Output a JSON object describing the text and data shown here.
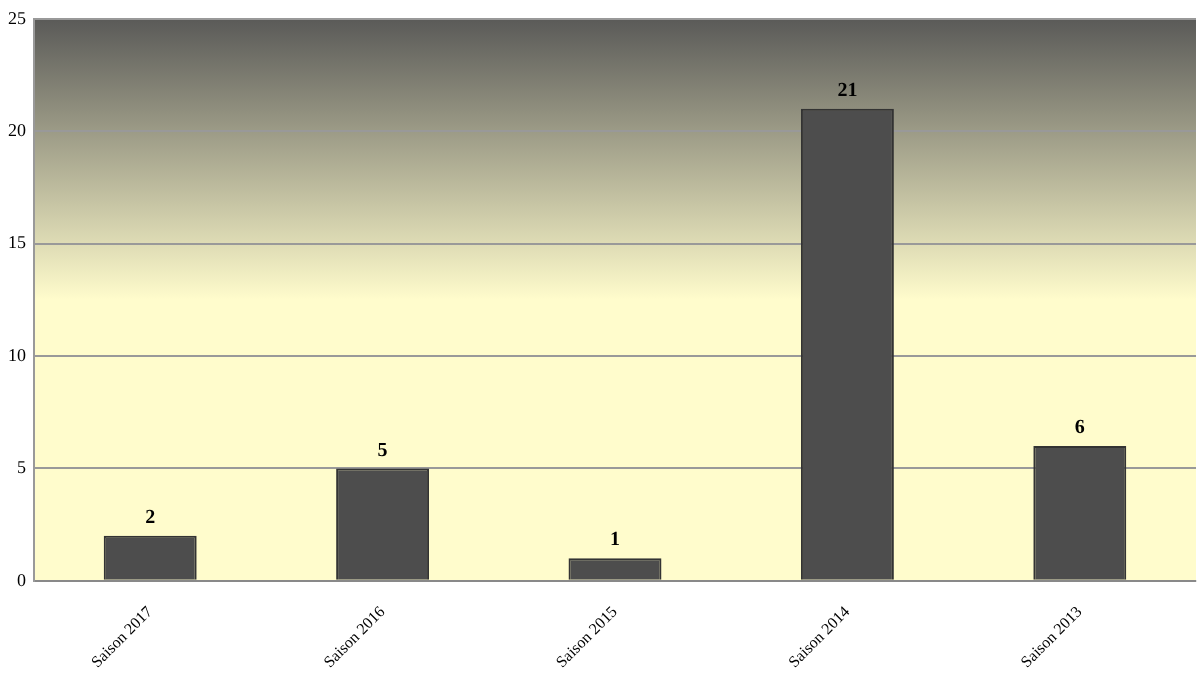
{
  "chart_data": {
    "type": "bar",
    "categories": [
      "Saison 2017",
      "Saison 2016",
      "Saison 2015",
      "Saison 2014",
      "Saison 2013"
    ],
    "values": [
      2,
      5,
      1,
      21,
      6
    ],
    "color": "#4d4d4d",
    "ylim": [
      0,
      25
    ],
    "yticks": [
      0,
      5,
      10,
      15,
      20,
      25
    ],
    "grid": "y",
    "data_labels": true
  }
}
